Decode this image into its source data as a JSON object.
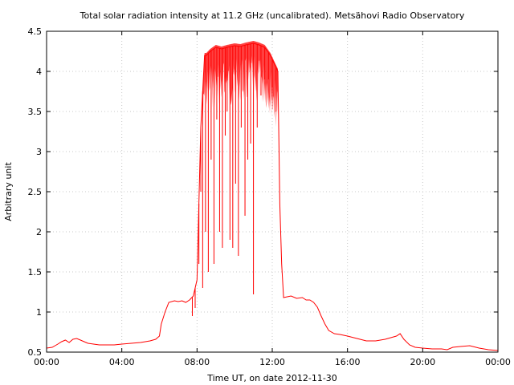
{
  "chart_data": {
    "type": "line",
    "title": "Total solar radiation intensity at 11.2 GHz (uncalibrated). Metsähovi Radio Observatory",
    "xlabel": "Time UT, on date 2012-11-30",
    "ylabel": "Arbitrary unit",
    "xlim": [
      0,
      24
    ],
    "ylim": [
      0.5,
      4.5
    ],
    "x_ticks": [
      0,
      4,
      8,
      12,
      16,
      20,
      24
    ],
    "x_tick_labels": [
      "00:00",
      "04:00",
      "08:00",
      "12:00",
      "16:00",
      "20:00",
      "00:00"
    ],
    "y_ticks": [
      0.5,
      1,
      1.5,
      2,
      2.5,
      3,
      3.5,
      4,
      4.5
    ],
    "y_tick_labels": [
      "0.5",
      "1",
      "1.5",
      "2",
      "2.5",
      "3",
      "3.5",
      "4",
      "4.5"
    ],
    "grid": true,
    "series": [
      {
        "color": "#ff0000",
        "x": [
          0.0,
          0.3,
          0.6,
          0.8,
          1.0,
          1.2,
          1.4,
          1.6,
          1.8,
          2.0,
          2.2,
          2.5,
          2.8,
          3.2,
          3.6,
          4.0,
          4.5,
          5.0,
          5.5,
          5.8,
          6.0,
          6.1,
          6.3,
          6.5,
          6.8,
          7.0,
          7.2,
          7.4,
          7.6,
          7.8,
          8.0,
          8.2,
          8.4,
          8.5,
          8.7,
          9.0,
          9.3,
          9.6,
          10.0,
          10.3,
          10.6,
          11.0,
          11.3,
          11.6,
          11.9,
          12.1,
          12.3,
          12.4,
          12.5,
          12.6,
          12.8,
          13.0,
          13.3,
          13.6,
          13.8,
          14.0,
          14.2,
          14.4,
          14.6,
          14.8,
          15.0,
          15.3,
          15.6,
          16.0,
          16.5,
          17.0,
          17.5,
          18.0,
          18.3,
          18.6,
          18.8,
          19.0,
          19.3,
          19.6,
          20.0,
          20.5,
          21.0,
          21.3,
          21.6,
          22.0,
          22.5,
          23.0,
          23.5,
          24.0
        ],
        "y": [
          0.55,
          0.56,
          0.6,
          0.63,
          0.65,
          0.62,
          0.66,
          0.67,
          0.65,
          0.63,
          0.61,
          0.6,
          0.59,
          0.59,
          0.59,
          0.6,
          0.61,
          0.62,
          0.64,
          0.66,
          0.7,
          0.85,
          1.0,
          1.12,
          1.14,
          1.13,
          1.14,
          1.12,
          1.15,
          1.2,
          1.4,
          3.3,
          4.2,
          4.2,
          4.25,
          4.3,
          4.28,
          4.3,
          4.32,
          4.31,
          4.33,
          4.35,
          4.33,
          4.3,
          4.2,
          4.1,
          4.0,
          2.35,
          1.6,
          1.18,
          1.19,
          1.2,
          1.17,
          1.18,
          1.15,
          1.15,
          1.12,
          1.06,
          0.95,
          0.85,
          0.77,
          0.73,
          0.72,
          0.7,
          0.67,
          0.64,
          0.64,
          0.66,
          0.68,
          0.7,
          0.73,
          0.66,
          0.59,
          0.56,
          0.55,
          0.54,
          0.54,
          0.53,
          0.56,
          0.57,
          0.58,
          0.55,
          0.53,
          0.52
        ]
      }
    ],
    "dips": {
      "x": [
        7.75,
        7.9,
        8.0,
        8.1,
        8.2,
        8.3,
        8.45,
        8.6,
        8.75,
        8.9,
        9.05,
        9.2,
        9.35,
        9.5,
        9.6,
        9.75,
        9.9,
        10.05,
        10.2,
        10.35,
        10.55,
        10.7,
        10.85,
        11.0,
        11.2,
        11.4,
        11.6,
        11.8,
        12.0,
        12.2
      ],
      "y": [
        0.95,
        1.05,
        3.7,
        1.6,
        2.5,
        1.3,
        2.0,
        1.5,
        2.9,
        1.6,
        3.4,
        2.0,
        1.8,
        3.2,
        3.5,
        1.9,
        1.8,
        2.6,
        1.7,
        3.3,
        2.2,
        2.9,
        3.1,
        1.22,
        3.3,
        3.7,
        3.9,
        3.9,
        3.8,
        3.5
      ]
    }
  }
}
